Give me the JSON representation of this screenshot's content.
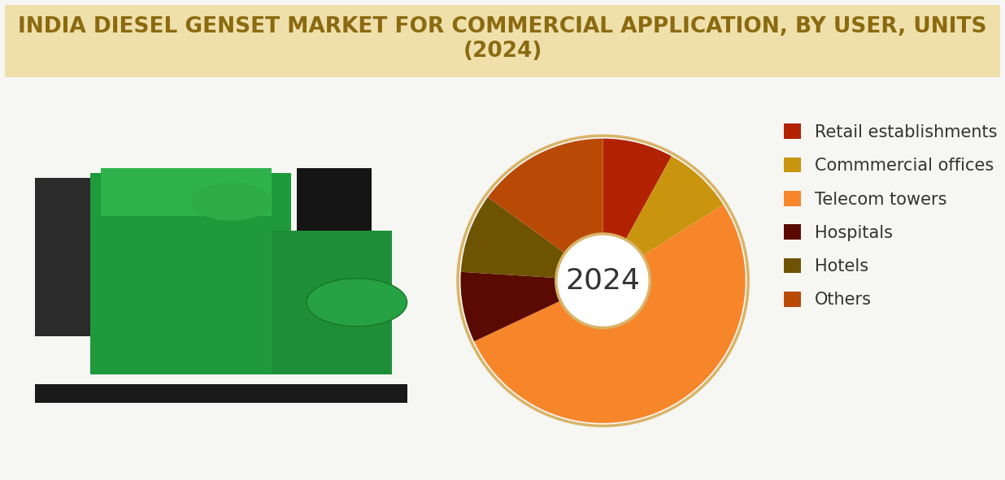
{
  "chart_data": {
    "type": "pie",
    "title": "INDIA DIESEL GENSET MARKET FOR COMMERCIAL APPLICATION, BY USER, UNITS (2024)",
    "center_text": "2024",
    "categories": [
      "Retail establishments",
      "Commmercial offices",
      "Telecom towers",
      "Hospitals",
      "Hotels",
      "Others"
    ],
    "values": [
      8,
      8,
      52,
      8,
      9,
      15
    ],
    "colors": [
      "#b22200",
      "#c9950e",
      "#f7862a",
      "#5a0a00",
      "#6e5300",
      "#b84a06"
    ],
    "legend": "center left"
  }
}
